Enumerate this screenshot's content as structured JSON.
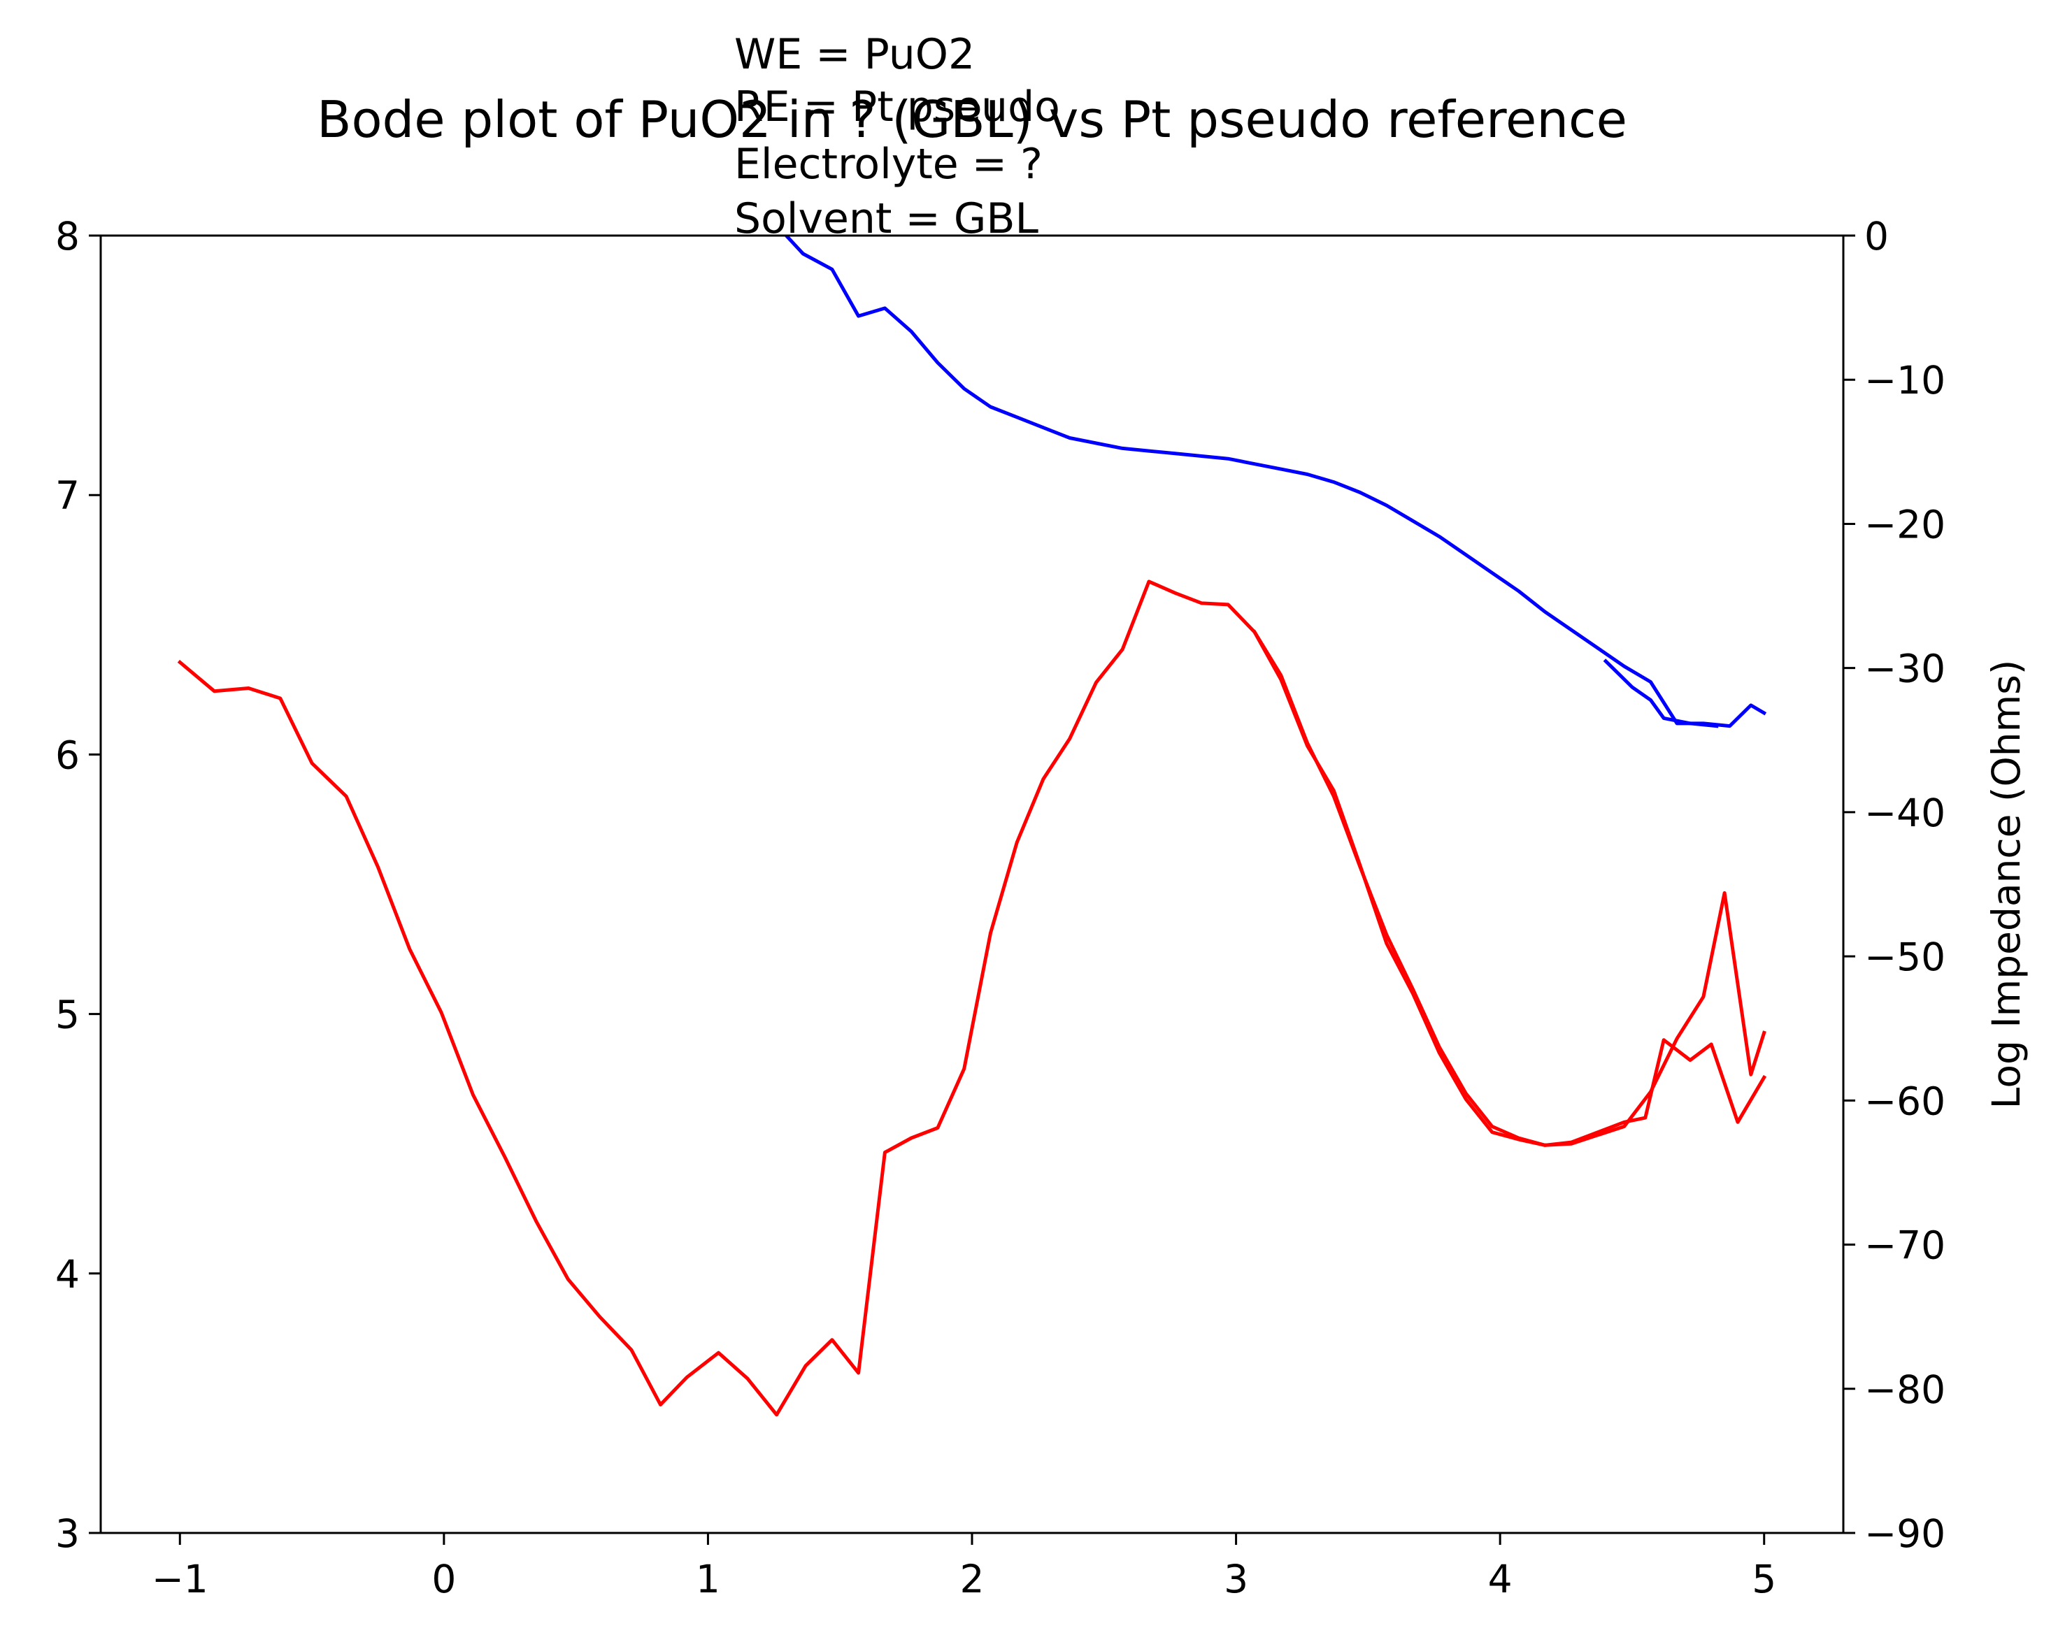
{
  "chart_data": {
    "type": "line",
    "title": "Bode plot of PuO2 in ? (GBL) vs Pt pseudo reference",
    "annotation": [
      "WE = PuO2",
      "RE = Pt pseudo",
      "Electrolyte = ?",
      "Solvent = GBL"
    ],
    "xlabel": "",
    "ylabel_left": "",
    "ylabel_right": "Log Impedance (Ohms)",
    "xlim": [
      -1.3,
      5.3
    ],
    "ylim_left": [
      3,
      8
    ],
    "ylim_right": [
      -90,
      0
    ],
    "xticks": [
      "−1",
      "0",
      "1",
      "2",
      "3",
      "4",
      "5"
    ],
    "yticks_left": [
      "3",
      "4",
      "5",
      "6",
      "7",
      "8"
    ],
    "yticks_right": [
      "−90",
      "−80",
      "−70",
      "−60",
      "−50",
      "−40",
      "−30",
      "−20",
      "−10",
      "0"
    ],
    "grid": false,
    "series": [
      {
        "color": "#0000ff",
        "axis": "left",
        "points": [
          [
            1.2,
            8.12
          ],
          [
            1.26,
            8.04
          ],
          [
            1.36,
            7.93
          ],
          [
            1.47,
            7.87
          ],
          [
            1.57,
            7.69
          ],
          [
            1.67,
            7.72
          ],
          [
            1.77,
            7.63
          ],
          [
            1.87,
            7.51
          ],
          [
            1.97,
            7.41
          ],
          [
            2.07,
            7.34
          ],
          [
            2.17,
            7.3
          ],
          [
            2.27,
            7.26
          ],
          [
            2.37,
            7.22
          ],
          [
            2.47,
            7.2
          ],
          [
            2.57,
            7.18
          ],
          [
            2.67,
            7.17
          ],
          [
            2.77,
            7.16
          ],
          [
            2.87,
            7.15
          ],
          [
            2.97,
            7.14
          ],
          [
            3.07,
            7.12
          ],
          [
            3.17,
            7.1
          ],
          [
            3.27,
            7.08
          ],
          [
            3.37,
            7.05
          ],
          [
            3.47,
            7.01
          ],
          [
            3.57,
            6.96
          ],
          [
            3.67,
            6.9
          ],
          [
            3.77,
            6.84
          ],
          [
            3.87,
            6.77
          ],
          [
            3.97,
            6.7
          ],
          [
            4.07,
            6.63
          ],
          [
            4.17,
            6.55
          ],
          [
            4.27,
            6.48
          ],
          [
            4.37,
            6.41
          ],
          [
            4.47,
            6.34
          ],
          [
            4.57,
            6.28
          ],
          [
            4.67,
            6.12
          ],
          [
            4.77,
            6.12
          ],
          [
            4.87,
            6.11
          ],
          [
            4.95,
            6.19
          ],
          [
            5.0,
            6.16
          ]
        ]
      },
      {
        "color": "#0000ff",
        "axis": "left",
        "points": [
          [
            4.4,
            6.36
          ],
          [
            4.5,
            6.26
          ],
          [
            4.57,
            6.21
          ],
          [
            4.62,
            6.14
          ],
          [
            4.72,
            6.12
          ],
          [
            4.82,
            6.11
          ]
        ]
      },
      {
        "color": "#ff0000",
        "axis": "right",
        "points": [
          [
            -1.0,
            -29.6
          ],
          [
            -0.87,
            -31.6
          ],
          [
            -0.74,
            -31.4
          ],
          [
            -0.62,
            -32.1
          ],
          [
            -0.5,
            -36.6
          ],
          [
            -0.37,
            -38.9
          ],
          [
            -0.25,
            -43.8
          ],
          [
            -0.13,
            -49.5
          ],
          [
            -0.01,
            -53.9
          ],
          [
            0.11,
            -59.6
          ],
          [
            0.23,
            -63.9
          ],
          [
            0.35,
            -68.4
          ],
          [
            0.47,
            -72.4
          ],
          [
            0.59,
            -75.0
          ],
          [
            0.71,
            -77.3
          ],
          [
            0.82,
            -81.1
          ],
          [
            0.92,
            -79.2
          ],
          [
            1.04,
            -77.5
          ],
          [
            1.15,
            -79.3
          ],
          [
            1.26,
            -81.8
          ],
          [
            1.37,
            -78.4
          ],
          [
            1.47,
            -76.6
          ],
          [
            1.57,
            -78.9
          ],
          [
            1.67,
            -63.6
          ],
          [
            1.77,
            -62.6
          ],
          [
            1.87,
            -61.9
          ],
          [
            1.97,
            -57.8
          ],
          [
            2.07,
            -48.4
          ],
          [
            2.17,
            -42.1
          ],
          [
            2.27,
            -37.7
          ],
          [
            2.37,
            -34.9
          ],
          [
            2.47,
            -31.0
          ],
          [
            2.57,
            -28.7
          ],
          [
            2.67,
            -24.0
          ],
          [
            2.77,
            -24.8
          ],
          [
            2.87,
            -25.5
          ],
          [
            2.97,
            -25.6
          ],
          [
            3.07,
            -27.5
          ],
          [
            3.17,
            -30.8
          ],
          [
            3.27,
            -35.4
          ],
          [
            3.37,
            -38.5
          ],
          [
            3.47,
            -43.7
          ],
          [
            3.57,
            -49.1
          ],
          [
            3.67,
            -52.6
          ],
          [
            3.77,
            -56.7
          ],
          [
            3.87,
            -59.9
          ],
          [
            3.97,
            -62.2
          ],
          [
            4.07,
            -62.7
          ],
          [
            4.17,
            -63.1
          ],
          [
            4.27,
            -63.0
          ],
          [
            4.37,
            -62.4
          ],
          [
            4.47,
            -61.8
          ],
          [
            4.57,
            -59.4
          ],
          [
            4.67,
            -55.7
          ],
          [
            4.77,
            -52.8
          ],
          [
            4.85,
            -45.6
          ],
          [
            4.95,
            -58.2
          ],
          [
            5.0,
            -55.3
          ]
        ]
      },
      {
        "color": "#ff0000",
        "axis": "right",
        "points": [
          [
            3.07,
            -27.5
          ],
          [
            3.17,
            -30.5
          ],
          [
            3.27,
            -35.2
          ],
          [
            3.37,
            -38.9
          ],
          [
            3.47,
            -43.8
          ],
          [
            3.57,
            -48.5
          ],
          [
            3.67,
            -52.3
          ],
          [
            3.77,
            -56.3
          ],
          [
            3.87,
            -59.5
          ],
          [
            3.97,
            -61.8
          ],
          [
            4.07,
            -62.6
          ],
          [
            4.17,
            -63.1
          ],
          [
            4.27,
            -62.9
          ],
          [
            4.37,
            -62.2
          ],
          [
            4.47,
            -61.5
          ],
          [
            4.55,
            -61.2
          ],
          [
            4.62,
            -55.8
          ],
          [
            4.72,
            -57.2
          ],
          [
            4.8,
            -56.1
          ],
          [
            4.9,
            -61.5
          ],
          [
            5.0,
            -58.4
          ]
        ]
      }
    ]
  }
}
